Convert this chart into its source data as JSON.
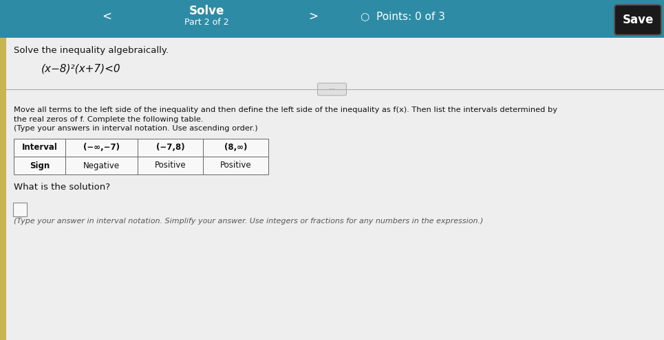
{
  "header_bg": "#2e8ba5",
  "header_text_color": "#ffffff",
  "body_bg": "#d8d8d8",
  "content_bg": "#efefef",
  "title_left": "Solve",
  "title_sub": "Part 2 of 2",
  "points_text": "Points: 0 of 3",
  "save_btn": "Save",
  "save_bg": "#1a1a1a",
  "save_text_color": "#ffffff",
  "instruction1": "Solve the inequality algebraically.",
  "inequality": "(x−8)²(x+7)<0",
  "instruction2_line1": "Move all terms to the left side of the inequality and then define the left side of the inequality as f(x). Then list the intervals determined by",
  "instruction2_line2": "the real zeros of f. Complete the following table.",
  "instruction2_line3": "(Type your answers in interval notation. Use ascending order.)",
  "table_headers": [
    "Interval",
    "(−∞,−7)",
    "(−7,8)",
    "(8,∞)"
  ],
  "table_row2": [
    "Sign",
    "Negative",
    "Positive",
    "Positive"
  ],
  "question": "What is the solution?",
  "footer_note": "(Type your answer in interval notation. Simplify your answer. Use integers or fractions for any numbers in the expression.)",
  "left_strip_color": "#c8b450",
  "divider_color": "#aaaaaa"
}
